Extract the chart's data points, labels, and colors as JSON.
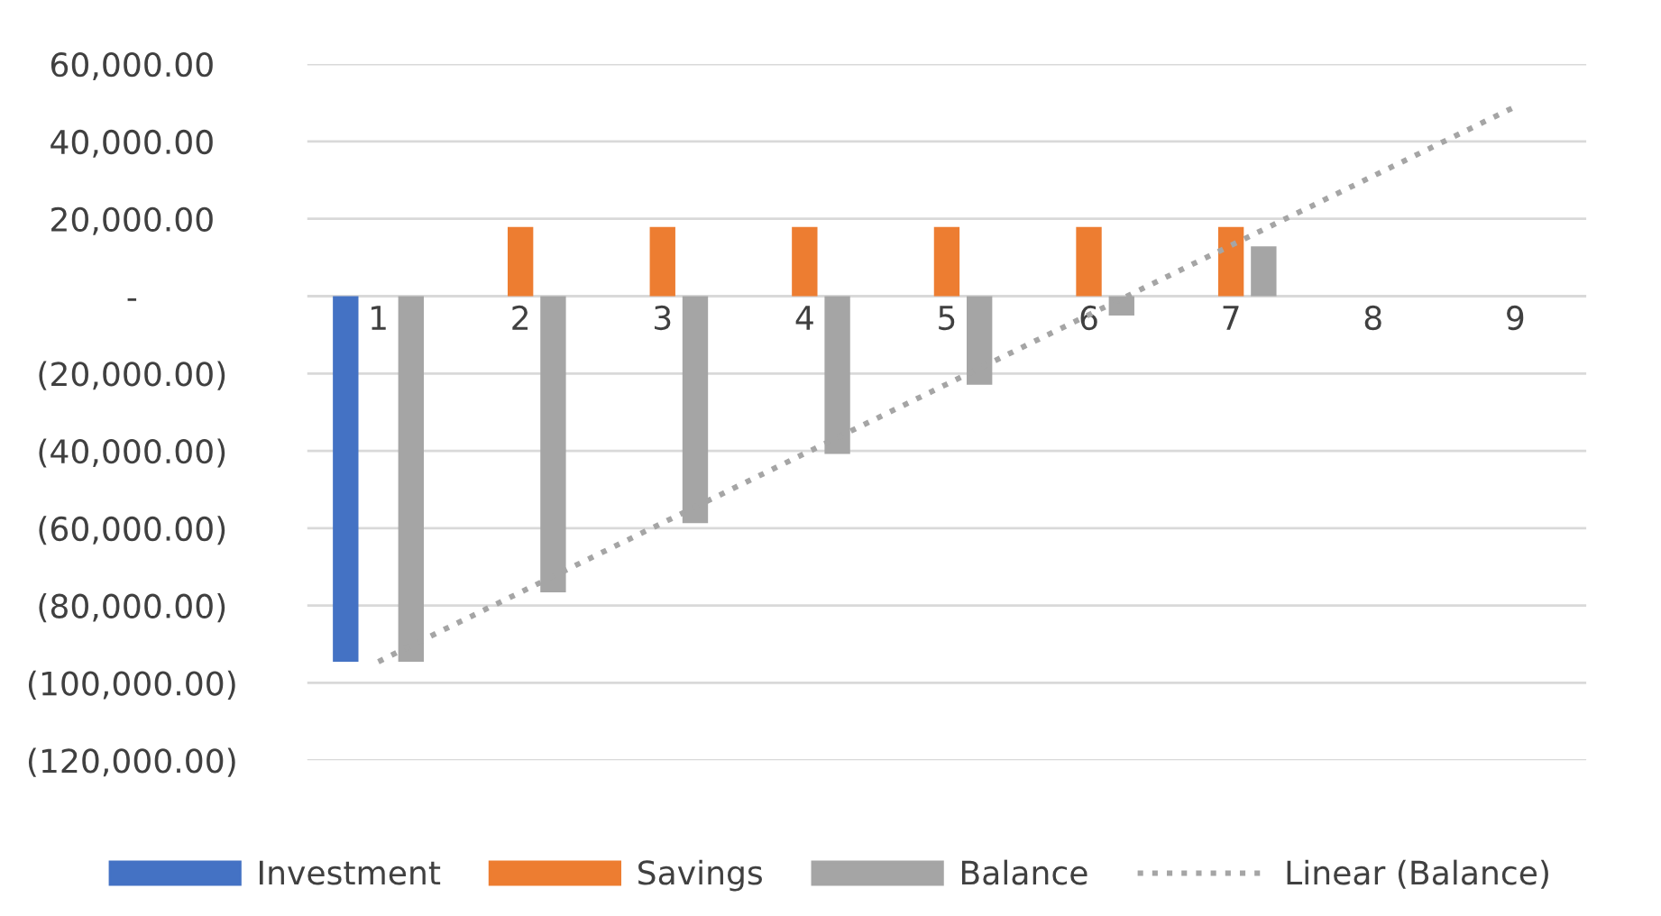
{
  "chart_data": {
    "type": "bar",
    "categories": [
      "1",
      "2",
      "3",
      "4",
      "5",
      "6",
      "7",
      "8",
      "9"
    ],
    "series": [
      {
        "name": "Investment",
        "color": "#4472c4",
        "values": [
          -94500,
          null,
          null,
          null,
          null,
          null,
          null,
          null,
          null
        ]
      },
      {
        "name": "Savings",
        "color": "#ed7d31",
        "values": [
          null,
          17900,
          17900,
          17900,
          17900,
          17900,
          17900,
          null,
          null
        ]
      },
      {
        "name": "Balance",
        "color": "#a5a5a5",
        "values": [
          -94500,
          -76600,
          -58700,
          -40800,
          -22900,
          -5000,
          12900,
          null,
          null
        ]
      },
      {
        "name": "Linear (Balance)",
        "type": "line",
        "color": "#a5a5a5",
        "line_style": "dotted",
        "x": [
          "1",
          "9"
        ],
        "values": [
          -94500,
          49000
        ]
      }
    ],
    "ylim": [
      -120000,
      60000
    ],
    "yticks": [
      {
        "value": -120000,
        "label": "(120,000.00)"
      },
      {
        "value": -100000,
        "label": "(100,000.00)"
      },
      {
        "value": -80000,
        "label": "(80,000.00)"
      },
      {
        "value": -60000,
        "label": "(60,000.00)"
      },
      {
        "value": -40000,
        "label": "(40,000.00)"
      },
      {
        "value": -20000,
        "label": "(20,000.00)"
      },
      {
        "value": 0,
        "label": "-"
      },
      {
        "value": 20000,
        "label": "20,000.00"
      },
      {
        "value": 40000,
        "label": "40,000.00"
      },
      {
        "value": 60000,
        "label": "60,000.00"
      }
    ],
    "grid": "y",
    "legend": "bottom"
  }
}
